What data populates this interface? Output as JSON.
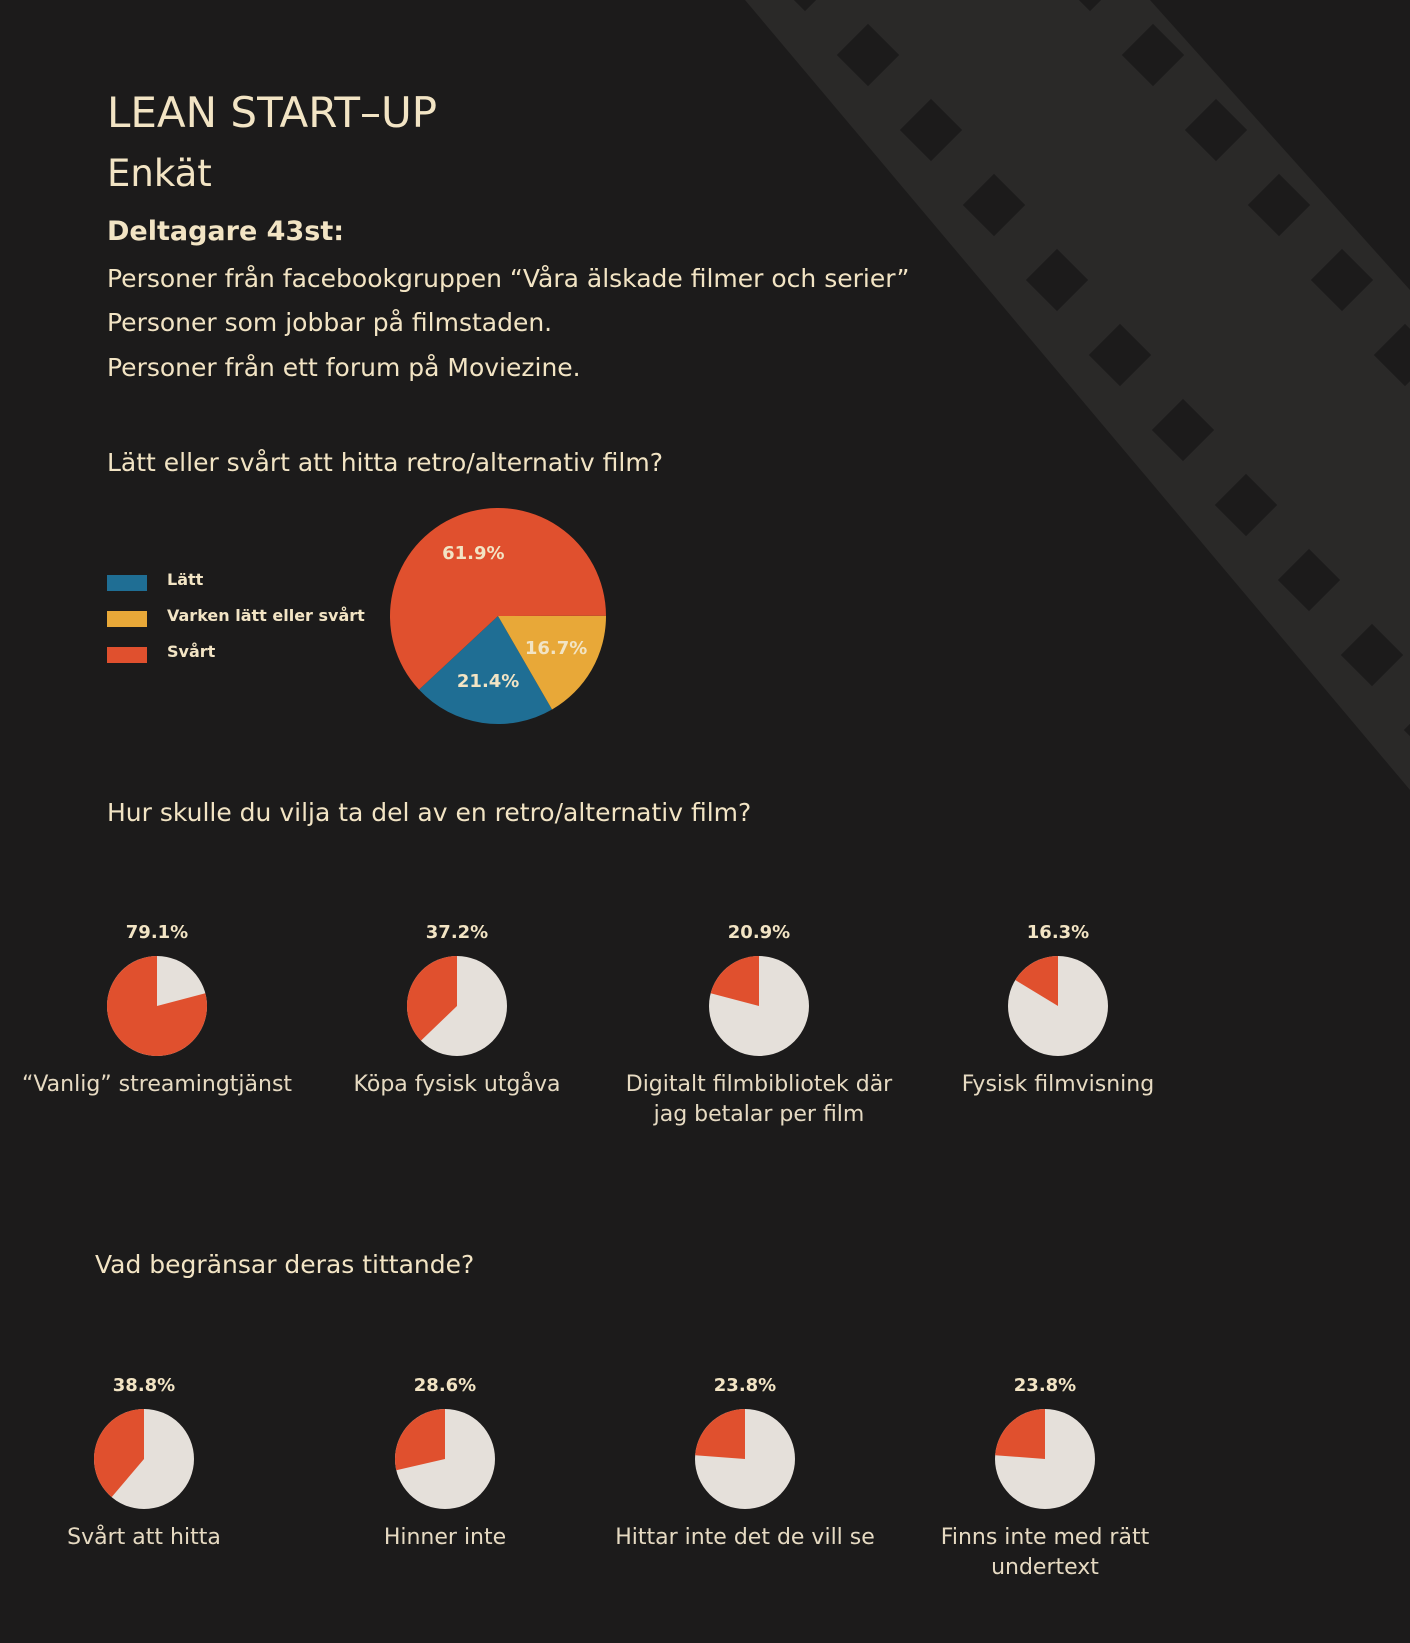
{
  "header": {
    "title": "LEAN START–UP",
    "subtitle": "Enkät",
    "participants": "Deltagare 43st:",
    "lines": [
      "Personer från facebookgruppen “Våra älskade filmer och serier”",
      "Personer som jobbar på filmstaden.",
      "Personer från ett forum på Moviezine."
    ]
  },
  "chart_data": [
    {
      "type": "pie",
      "title": "Lätt eller svårt att hitta retro/alternativ film?",
      "categories": [
        "Lätt",
        "Varken lätt eller svårt",
        "Svårt"
      ],
      "values": [
        21.4,
        16.7,
        61.9
      ],
      "value_labels": [
        "21.4%",
        "16.7%",
        "61.9%"
      ],
      "colors": [
        "#1f6e94",
        "#e8a838",
        "#e0502e"
      ],
      "legend": "left"
    },
    {
      "type": "pies",
      "title": "Hur skulle du vilja ta del av en retro/alternativ film?",
      "categories": [
        "“Vanlig” streamingtjänst",
        "Köpa fysisk utgåva",
        "Digitalt filmbibliotek där jag betalar per film",
        "Fysisk filmvisning"
      ],
      "values": [
        79.1,
        37.2,
        20.9,
        16.3
      ],
      "value_labels": [
        "79.1%",
        "37.2%",
        "20.9%",
        "16.3%"
      ],
      "color": "#e0502e",
      "rest_color": "#e5e0da"
    },
    {
      "type": "pies",
      "title": "Vad begränsar deras tittande?",
      "categories": [
        "Svårt att hitta",
        "Hinner inte",
        "Hittar inte det de vill se",
        "Finns inte med rätt undertext"
      ],
      "values": [
        38.8,
        28.6,
        23.8,
        23.8
      ],
      "value_labels": [
        "38.8%",
        "28.6%",
        "23.8%",
        "23.8%"
      ],
      "color": "#e0502e",
      "rest_color": "#e5e0da"
    }
  ]
}
